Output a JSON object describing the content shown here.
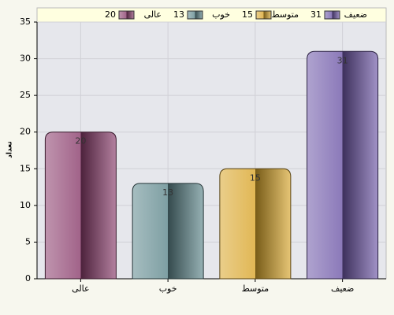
{
  "chart_data": {
    "type": "bar",
    "y_label": "تعداد",
    "categories": [
      "عالی",
      "خوب",
      "متوسط",
      "ضعیف"
    ],
    "values": [
      20,
      13,
      15,
      31
    ],
    "colors": [
      "#8a3c6c",
      "#5e878c",
      "#d9a52a",
      "#6e58a8"
    ],
    "ylim": [
      0,
      35
    ],
    "yticks": [
      0,
      5,
      10,
      15,
      20,
      25,
      30,
      35
    ],
    "grid": true,
    "legend": "top"
  }
}
